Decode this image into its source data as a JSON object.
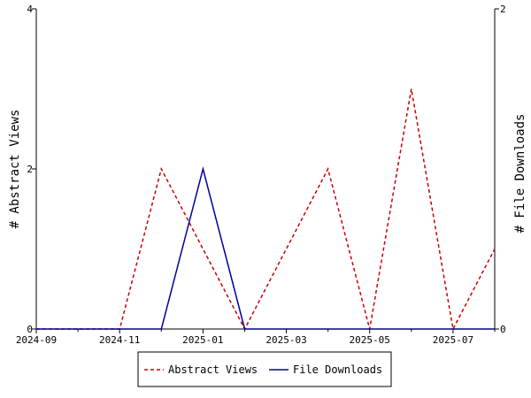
{
  "chart_data": {
    "type": "line",
    "title": "",
    "x": [
      "2024-09",
      "2024-10",
      "2024-11",
      "2024-12",
      "2025-01",
      "2025-02",
      "2025-03",
      "2025-04",
      "2025-05",
      "2025-06",
      "2025-07",
      "2025-08"
    ],
    "xlim": [
      "2024-09",
      "2025-08"
    ],
    "x_ticks": [
      "2024-09",
      "2024-11",
      "2025-01",
      "2025-03",
      "2025-05",
      "2025-07"
    ],
    "y_left": {
      "label": "# Abstract Views",
      "lim": [
        0,
        4
      ],
      "ticks": [
        0,
        2,
        4
      ]
    },
    "y_right": {
      "label": "# File Downloads",
      "lim": [
        0,
        2
      ],
      "ticks": [
        0,
        2
      ]
    },
    "series": [
      {
        "name": "Abstract Views",
        "axis": "left",
        "color": "#cc0000",
        "style": "dashed",
        "values": [
          0,
          0,
          0,
          2,
          1,
          0,
          1,
          2,
          0,
          3,
          0,
          1
        ]
      },
      {
        "name": "File Downloads",
        "axis": "right",
        "color": "#000099",
        "style": "solid",
        "values": [
          0,
          0,
          0,
          0,
          1,
          0,
          0,
          0,
          0,
          0,
          0,
          0
        ]
      }
    ],
    "grid": false,
    "legend_position": "bottom"
  }
}
